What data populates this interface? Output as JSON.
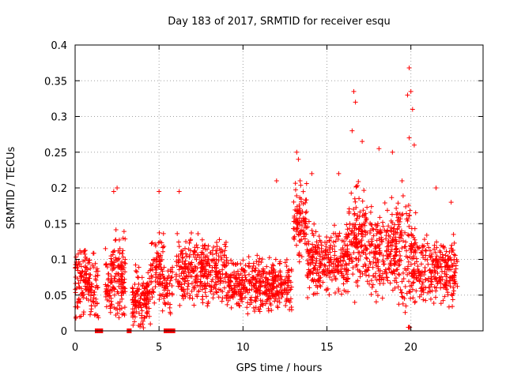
{
  "chart_data": {
    "type": "scatter",
    "title": "Day 183 of 2017, SRMTID for receiver esqu",
    "xlabel": "GPS time / hours",
    "ylabel": "SRMTID / TECUs",
    "xlim": [
      0,
      24.3
    ],
    "ylim": [
      0,
      0.4
    ],
    "xticks": [
      0,
      5,
      10,
      15,
      20
    ],
    "yticks": [
      0,
      0.05,
      0.1,
      0.15,
      0.2,
      0.25,
      0.3,
      0.35,
      0.4
    ],
    "grid": true,
    "marker": "+",
    "colors": {
      "points": "#ff0000",
      "axis": "#000000",
      "grid": "#a0a0a0"
    },
    "envelope": [
      {
        "x": [
          0.0,
          0.9
        ],
        "median": 0.07,
        "spread": 0.05,
        "n": 110
      },
      {
        "x": [
          0.9,
          1.4
        ],
        "median": 0.06,
        "spread": 0.05,
        "n": 50
      },
      {
        "x": [
          1.8,
          2.2
        ],
        "median": 0.06,
        "spread": 0.05,
        "n": 50
      },
      {
        "x": [
          2.2,
          3.0
        ],
        "median": 0.08,
        "spread": 0.06,
        "n": 110
      },
      {
        "x": [
          3.4,
          4.5
        ],
        "median": 0.045,
        "spread": 0.04,
        "n": 140
      },
      {
        "x": [
          4.5,
          5.3
        ],
        "median": 0.08,
        "spread": 0.06,
        "n": 90
      },
      {
        "x": [
          5.3,
          5.8
        ],
        "median": 0.06,
        "spread": 0.05,
        "n": 40
      },
      {
        "x": [
          6.0,
          9.0
        ],
        "median": 0.085,
        "spread": 0.045,
        "n": 330
      },
      {
        "x": [
          9.0,
          12.9
        ],
        "median": 0.065,
        "spread": 0.035,
        "n": 420
      },
      {
        "x": [
          13.0,
          13.8
        ],
        "median": 0.15,
        "spread": 0.05,
        "n": 90
      },
      {
        "x": [
          13.8,
          16.3
        ],
        "median": 0.1,
        "spread": 0.045,
        "n": 280
      },
      {
        "x": [
          16.3,
          17.3
        ],
        "median": 0.13,
        "spread": 0.07,
        "n": 130
      },
      {
        "x": [
          17.3,
          19.1
        ],
        "median": 0.11,
        "spread": 0.06,
        "n": 210
      },
      {
        "x": [
          19.1,
          20.3
        ],
        "median": 0.11,
        "spread": 0.08,
        "n": 150
      },
      {
        "x": [
          20.3,
          22.8
        ],
        "median": 0.085,
        "spread": 0.045,
        "n": 250
      }
    ],
    "peaks": [
      {
        "x": 16.6,
        "y": 0.335
      },
      {
        "x": 16.7,
        "y": 0.32
      },
      {
        "x": 16.5,
        "y": 0.28
      },
      {
        "x": 19.9,
        "y": 0.368
      },
      {
        "x": 20.0,
        "y": 0.335
      },
      {
        "x": 19.8,
        "y": 0.33
      },
      {
        "x": 20.1,
        "y": 0.31
      },
      {
        "x": 19.9,
        "y": 0.27
      },
      {
        "x": 20.2,
        "y": 0.26
      },
      {
        "x": 17.1,
        "y": 0.265
      },
      {
        "x": 18.1,
        "y": 0.255
      },
      {
        "x": 18.9,
        "y": 0.25
      },
      {
        "x": 13.2,
        "y": 0.25
      },
      {
        "x": 13.3,
        "y": 0.24
      },
      {
        "x": 13.4,
        "y": 0.21
      },
      {
        "x": 12.0,
        "y": 0.21
      },
      {
        "x": 2.5,
        "y": 0.2
      },
      {
        "x": 2.3,
        "y": 0.195
      },
      {
        "x": 5.0,
        "y": 0.195
      },
      {
        "x": 6.2,
        "y": 0.195
      },
      {
        "x": 14.1,
        "y": 0.22
      },
      {
        "x": 22.4,
        "y": 0.18
      },
      {
        "x": 21.5,
        "y": 0.2
      },
      {
        "x": 15.7,
        "y": 0.22
      }
    ],
    "zeros": [
      {
        "x_from": 1.2,
        "x_to": 1.65,
        "y": 0
      },
      {
        "x_from": 3.1,
        "x_to": 3.35,
        "y": 0
      },
      {
        "x_from": 5.3,
        "x_to": 5.95,
        "y": 0
      },
      {
        "x_from": 19.85,
        "x_to": 19.95,
        "y": 0.005
      }
    ]
  }
}
